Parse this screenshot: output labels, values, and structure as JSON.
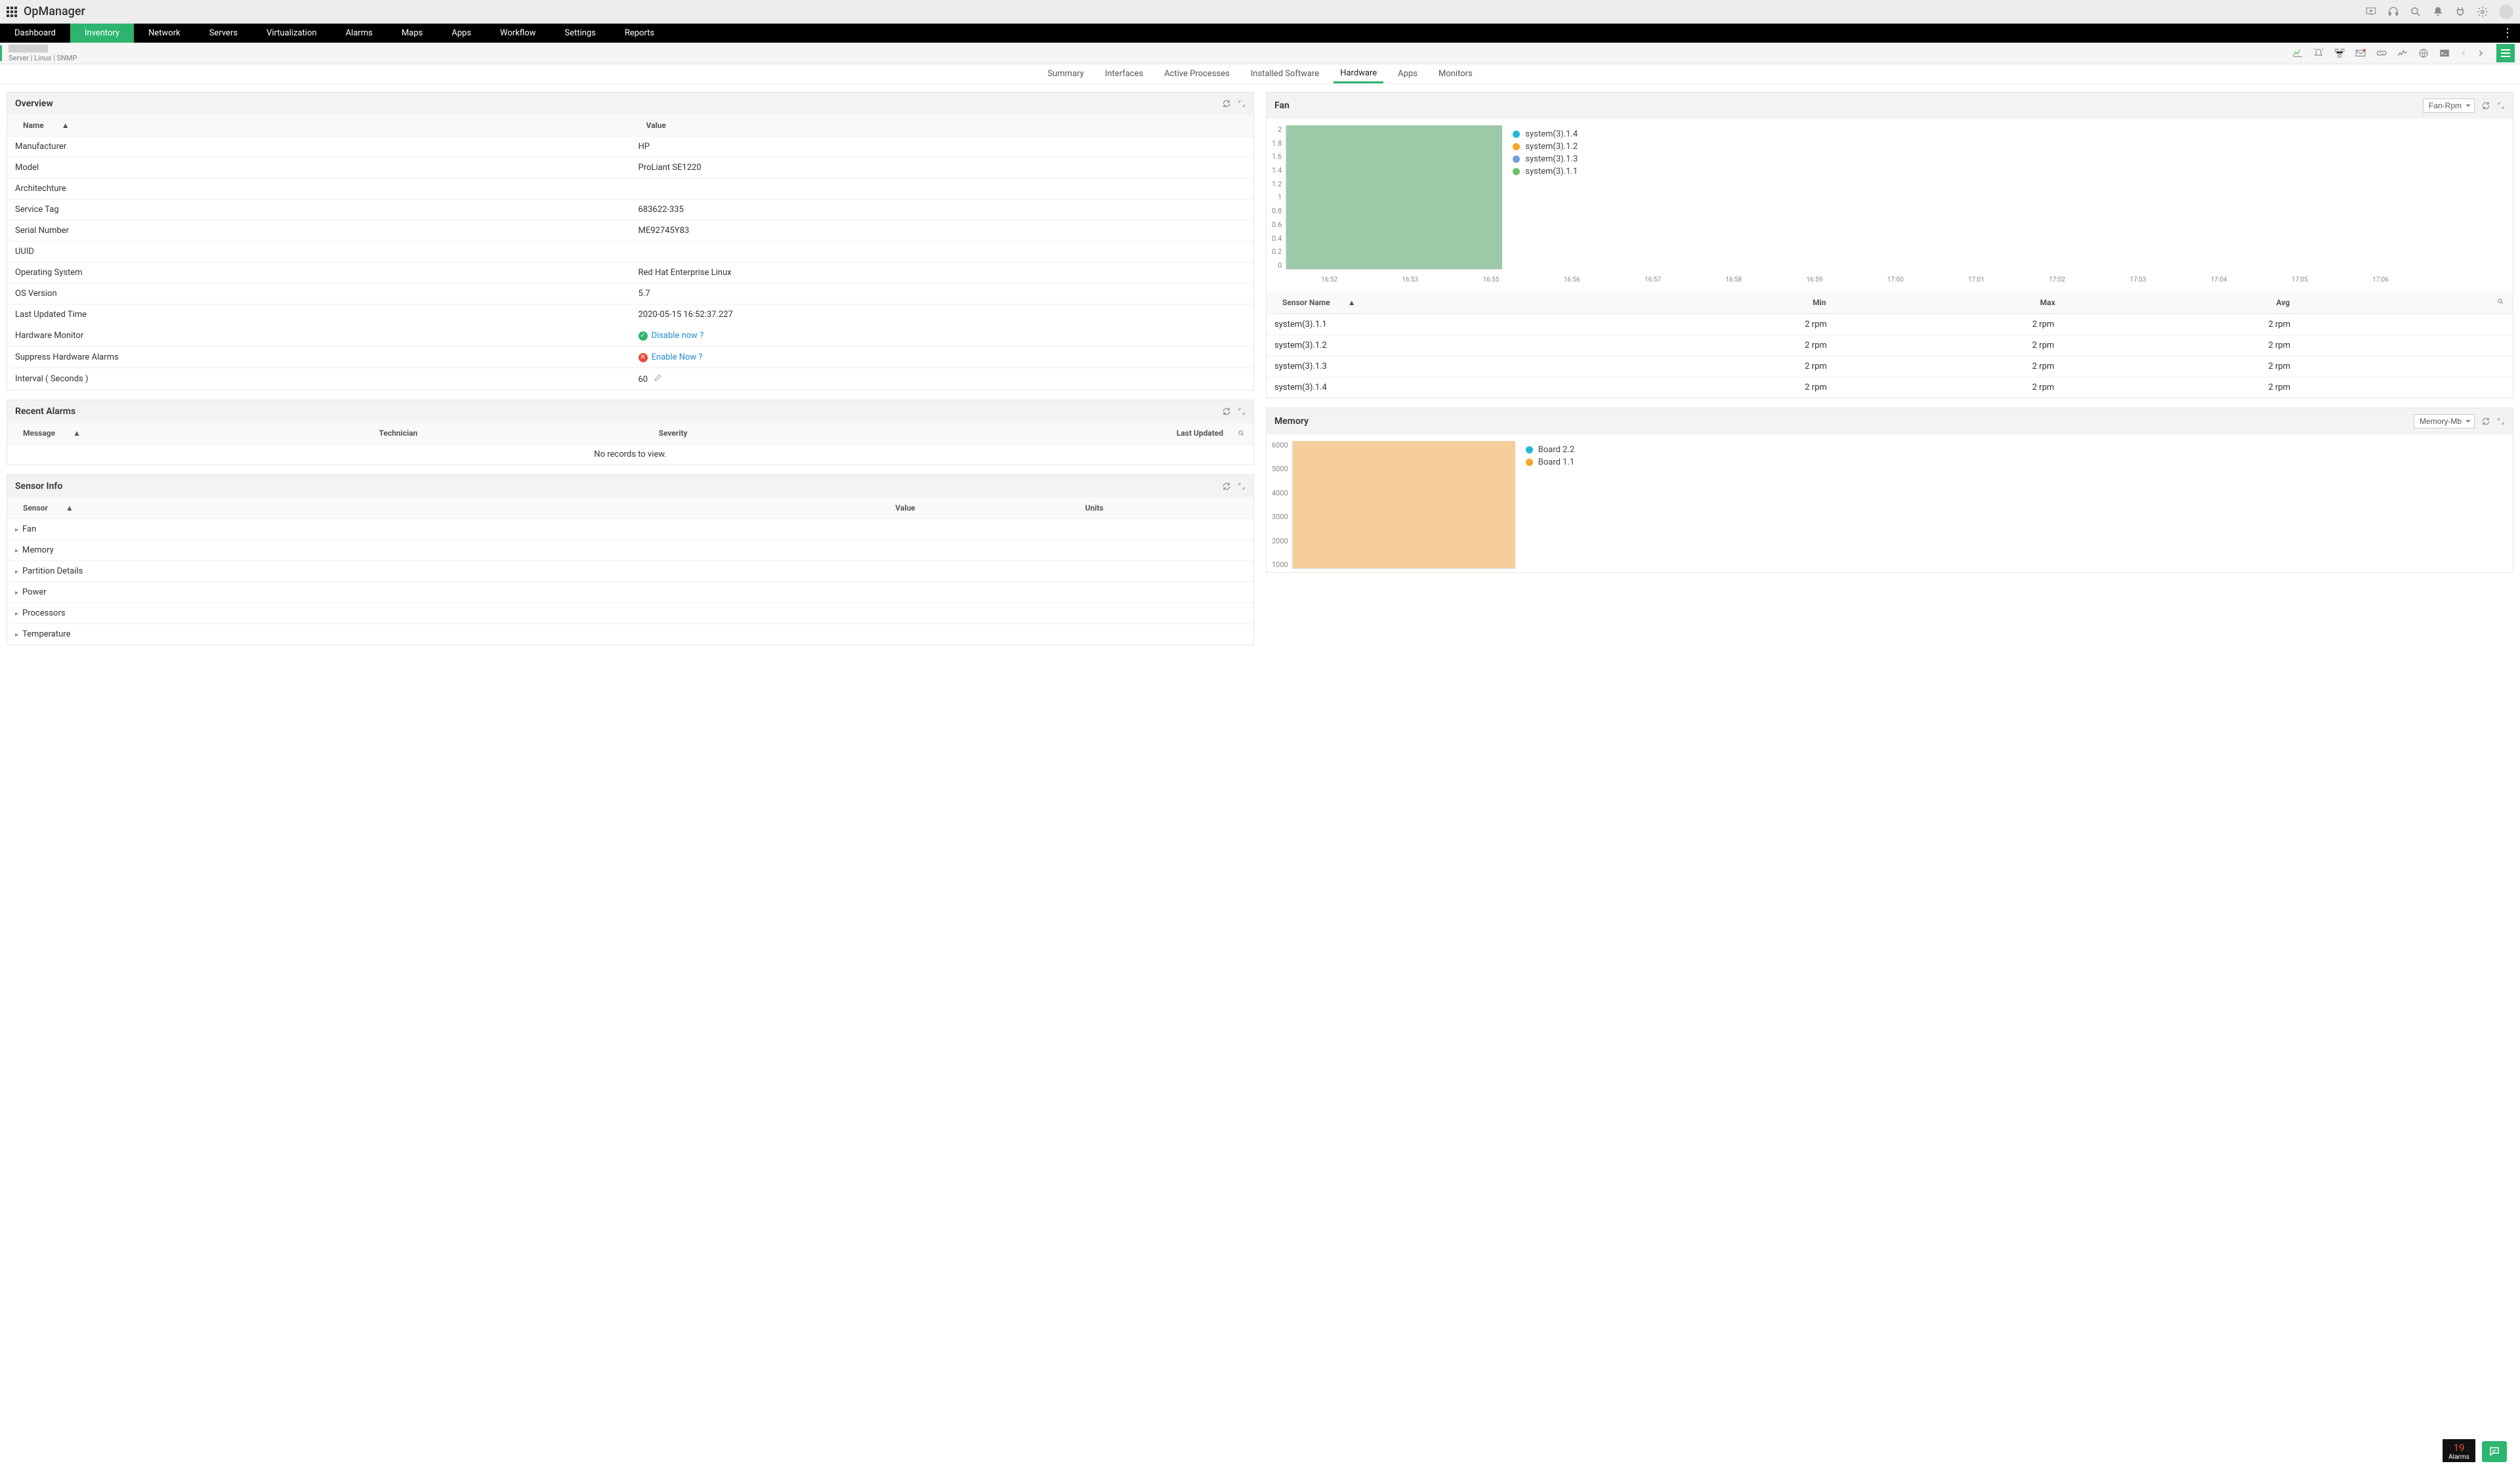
{
  "app": {
    "title": "OpManager"
  },
  "mainnav": {
    "items": [
      "Dashboard",
      "Inventory",
      "Network",
      "Servers",
      "Virtualization",
      "Alarms",
      "Maps",
      "Apps",
      "Workflow",
      "Settings",
      "Reports"
    ],
    "active_index": 1
  },
  "breadcrumb": {
    "meta": "Server | Linux  | SNMP"
  },
  "subtabs": {
    "items": [
      "Summary",
      "Interfaces",
      "Active Processes",
      "Installed Software",
      "Hardware",
      "Apps",
      "Monitors"
    ],
    "active_index": 4
  },
  "overview": {
    "title": "Overview",
    "col_name": "Name",
    "col_value": "Value",
    "rows": [
      {
        "name": "Manufacturer",
        "value": "HP"
      },
      {
        "name": "Model",
        "value": "ProLiant SE1220"
      },
      {
        "name": "Architechture",
        "value": ""
      },
      {
        "name": "Service Tag",
        "value": "683622-335"
      },
      {
        "name": "Serial Number",
        "value": "ME92745Y83"
      },
      {
        "name": "UUID",
        "value": ""
      },
      {
        "name": "Operating System",
        "value": "Red Hat Enterprise Linux"
      },
      {
        "name": "OS Version",
        "value": "5.7"
      },
      {
        "name": "Last Updated Time",
        "value": "2020-05-15 16:52:37.227"
      }
    ],
    "hw_monitor_label": "Hardware Monitor",
    "hw_monitor_action": "Disable now ?",
    "suppress_label": "Suppress Hardware Alarms",
    "suppress_action": "Enable Now ?",
    "interval_label": "Interval  ( Seconds )",
    "interval_value": "60"
  },
  "recent_alarms": {
    "title": "Recent Alarms",
    "cols": [
      "Message",
      "Technician",
      "Severity",
      "Last Updated"
    ],
    "empty_text": "No records to view."
  },
  "sensor_info": {
    "title": "Sensor Info",
    "cols": [
      "Sensor",
      "Value",
      "Units"
    ],
    "groups": [
      "Fan",
      "Memory",
      "Partition Details",
      "Power",
      "Processors",
      "Temperature"
    ]
  },
  "fan_panel": {
    "title": "Fan",
    "metric_dd": "Fan-Rpm",
    "chart": {
      "y_ticks": [
        "2",
        "1.8",
        "1.6",
        "1.4",
        "1.2",
        "1",
        "0.8",
        "0.6",
        "0.4",
        "0.2",
        "0"
      ],
      "x_ticks": [
        "16:52",
        "16:53",
        "16:55",
        "16:56",
        "16:57",
        "16:58",
        "16:59",
        "17:00",
        "17:01",
        "17:02",
        "17:03",
        "17:04",
        "17:05",
        "17:06"
      ],
      "area_color": "#9ec9a8",
      "series": [
        {
          "label": "system(3).1.4",
          "color": "#1fbad6"
        },
        {
          "label": "system(3).1.2",
          "color": "#f5a623"
        },
        {
          "label": "system(3).1.3",
          "color": "#6e9ed8"
        },
        {
          "label": "system(3).1.1",
          "color": "#6cc36c"
        }
      ]
    },
    "table": {
      "cols": [
        "Sensor Name",
        "Min",
        "Max",
        "Avg"
      ],
      "rows": [
        {
          "name": "system(3).1.1",
          "min": "2 rpm",
          "max": "2 rpm",
          "avg": "2 rpm"
        },
        {
          "name": "system(3).1.2",
          "min": "2 rpm",
          "max": "2 rpm",
          "avg": "2 rpm"
        },
        {
          "name": "system(3).1.3",
          "min": "2 rpm",
          "max": "2 rpm",
          "avg": "2 rpm"
        },
        {
          "name": "system(3).1.4",
          "min": "2 rpm",
          "max": "2 rpm",
          "avg": "2 rpm"
        }
      ]
    }
  },
  "memory_panel": {
    "title": "Memory",
    "metric_dd": "Memory-Mb",
    "chart": {
      "y_ticks": [
        "6000",
        "5000",
        "4000",
        "3000",
        "2000",
        "1000"
      ],
      "area_color": "#f6ce9c",
      "series": [
        {
          "label": "Board 2.2",
          "color": "#1fbad6"
        },
        {
          "label": "Board 1.1",
          "color": "#f5a623"
        }
      ]
    }
  },
  "footer": {
    "alarm_count": "19",
    "alarm_label": "Alarms"
  }
}
